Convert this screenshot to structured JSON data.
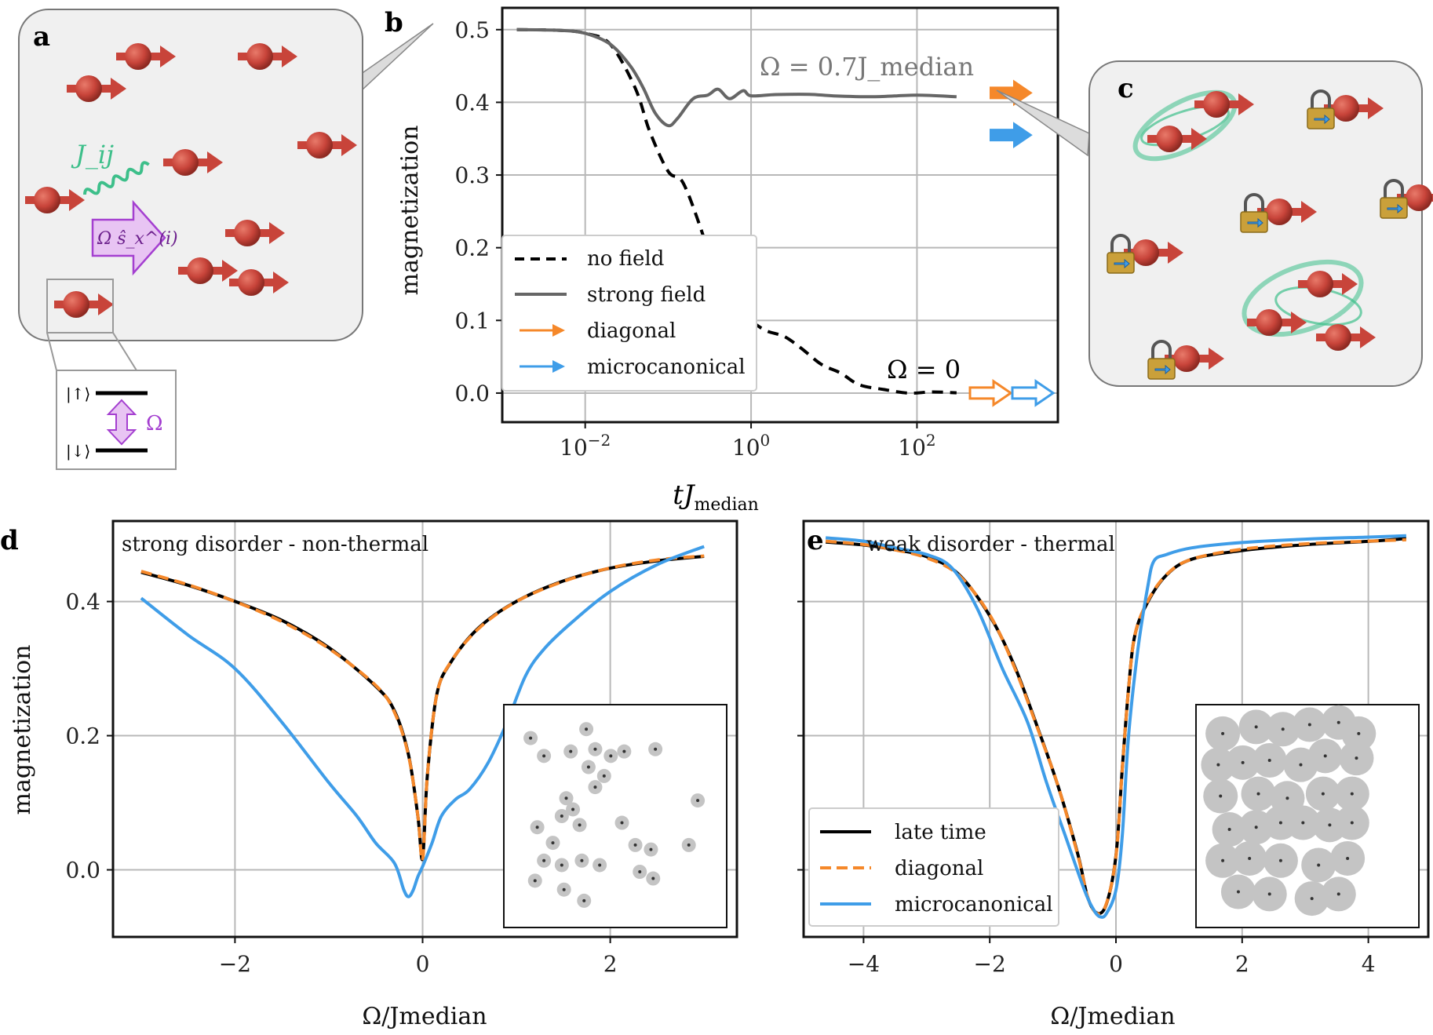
{
  "panels": {
    "a": {
      "letter": "a",
      "coupling_label": "J_ij",
      "field_label": "Ω ŝ_x^(i)",
      "level_up": "|↑⟩",
      "level_down": "|↓⟩",
      "level_field": "Ω"
    },
    "b": {
      "letter": "b",
      "annot_strong": "Ω = 0.7J_median",
      "annot_zero": "Ω = 0",
      "legend": [
        "no field",
        "strong field",
        "diagonal",
        "microcanonical"
      ]
    },
    "c": {
      "letter": "c"
    },
    "d": {
      "letter": "d",
      "title": "strong disorder - non-thermal"
    },
    "e": {
      "letter": "e",
      "title": "weak disorder - thermal",
      "legend": [
        "late time",
        "diagonal",
        "microcanonical"
      ]
    }
  },
  "colors": {
    "spin": "#c8443a",
    "coupling": "#3dbf8a",
    "field": "#a43fd0",
    "field_fill": "#e8c4f3",
    "orange": "#f5882a",
    "blue": "#3f9de8",
    "strong": "#666666",
    "black": "#000000",
    "lock": "#caa03a"
  },
  "icons": [
    "spin-arrow-icon",
    "padlock-icon",
    "wavy-coupling-icon",
    "double-arrow-icon"
  ],
  "chart_data": [
    {
      "panel": "b",
      "type": "line",
      "xscale": "log",
      "xlabel": "tJ_median",
      "ylabel": "magnetization",
      "xlim": [
        0.001,
        5000
      ],
      "ylim": [
        -0.04,
        0.53
      ],
      "xticks": [
        0.01,
        1,
        100
      ],
      "xtick_labels": [
        "10^−2",
        "10^0",
        "10^2"
      ],
      "yticks": [
        0.0,
        0.1,
        0.2,
        0.3,
        0.4,
        0.5
      ],
      "ytick_labels": [
        "0.0",
        "0.1",
        "0.2",
        "0.3",
        "0.4",
        "0.5"
      ],
      "grid": true,
      "legend_position": "lower-left",
      "series": [
        {
          "name": "no field",
          "style": "dashed",
          "x": [
            0.0015,
            0.005,
            0.01,
            0.02,
            0.04,
            0.06,
            0.1,
            0.15,
            0.25,
            0.4,
            0.7,
            1.0,
            1.5,
            2.5,
            4,
            7,
            12,
            20,
            40,
            80,
            150,
            300
          ],
          "y": [
            0.5,
            0.499,
            0.495,
            0.48,
            0.42,
            0.36,
            0.305,
            0.29,
            0.225,
            0.15,
            0.12,
            0.1,
            0.088,
            0.075,
            0.06,
            0.04,
            0.025,
            0.012,
            0.004,
            0.001,
            0.0,
            0.0
          ]
        },
        {
          "name": "strong field",
          "style": "solid",
          "x": [
            0.0015,
            0.005,
            0.01,
            0.02,
            0.035,
            0.05,
            0.07,
            0.1,
            0.13,
            0.2,
            0.3,
            0.4,
            0.55,
            0.8,
            1.0,
            2,
            5,
            10,
            30,
            100,
            300
          ],
          "y": [
            0.5,
            0.499,
            0.495,
            0.48,
            0.45,
            0.42,
            0.385,
            0.368,
            0.378,
            0.405,
            0.41,
            0.418,
            0.405,
            0.416,
            0.409,
            0.412,
            0.411,
            0.411,
            0.41,
            0.411,
            0.41
          ]
        }
      ],
      "arrows": [
        {
          "name": "diagonal",
          "omega": "strong",
          "y": 0.413
        },
        {
          "name": "microcanonical",
          "omega": "strong",
          "y": 0.355
        },
        {
          "name": "diagonal",
          "omega": "zero",
          "y": 0.0
        },
        {
          "name": "microcanonical",
          "omega": "zero",
          "y": 0.0
        }
      ]
    },
    {
      "panel": "d",
      "type": "line",
      "xlabel": "Ω/Jmedian",
      "ylabel": "magnetization",
      "xlim": [
        -3.3,
        3.35
      ],
      "ylim": [
        -0.1,
        0.52
      ],
      "xticks": [
        -2,
        0,
        2
      ],
      "yticks": [
        0.0,
        0.2,
        0.4
      ],
      "ytick_labels": [
        "0.0",
        "0.2",
        "0.4"
      ],
      "grid": true,
      "series": [
        {
          "name": "late time",
          "x": [
            -3,
            -2.5,
            -2,
            -1.5,
            -1,
            -0.5,
            -0.3,
            -0.15,
            -0.05,
            0,
            0.05,
            0.15,
            0.3,
            0.6,
            1,
            1.5,
            2,
            2.5,
            3
          ],
          "y": [
            0.445,
            0.425,
            0.4,
            0.37,
            0.33,
            0.275,
            0.235,
            0.17,
            0.08,
            0.015,
            0.14,
            0.26,
            0.31,
            0.36,
            0.4,
            0.43,
            0.45,
            0.462,
            0.468
          ]
        },
        {
          "name": "diagonal",
          "x": [
            -3,
            -2.5,
            -2,
            -1.5,
            -1,
            -0.5,
            -0.3,
            -0.15,
            -0.05,
            0,
            0.05,
            0.15,
            0.3,
            0.6,
            1,
            1.5,
            2,
            2.5,
            3
          ],
          "y": [
            0.445,
            0.425,
            0.4,
            0.37,
            0.33,
            0.275,
            0.235,
            0.17,
            0.08,
            0.015,
            0.14,
            0.26,
            0.31,
            0.36,
            0.4,
            0.43,
            0.45,
            0.462,
            0.468
          ]
        },
        {
          "name": "microcanonical",
          "x": [
            -3,
            -2.5,
            -2,
            -1.5,
            -1,
            -0.7,
            -0.5,
            -0.3,
            -0.2,
            -0.15,
            -0.1,
            -0.05,
            0,
            0.1,
            0.2,
            0.35,
            0.5,
            0.7,
            0.9,
            1.1,
            1.3,
            1.6,
            2,
            2.5,
            3
          ],
          "y": [
            0.405,
            0.35,
            0.3,
            0.22,
            0.13,
            0.08,
            0.04,
            0.01,
            -0.03,
            -0.04,
            -0.03,
            -0.01,
            0.005,
            0.04,
            0.08,
            0.105,
            0.12,
            0.16,
            0.22,
            0.29,
            0.33,
            0.37,
            0.415,
            0.455,
            0.482
          ]
        }
      ],
      "inset_points": [
        [
          0.12,
          0.85
        ],
        [
          0.37,
          0.89
        ],
        [
          0.18,
          0.77
        ],
        [
          0.3,
          0.79
        ],
        [
          0.41,
          0.8
        ],
        [
          0.38,
          0.72
        ],
        [
          0.48,
          0.77
        ],
        [
          0.54,
          0.79
        ],
        [
          0.68,
          0.8
        ],
        [
          0.45,
          0.68
        ],
        [
          0.28,
          0.58
        ],
        [
          0.41,
          0.63
        ],
        [
          0.26,
          0.5
        ],
        [
          0.31,
          0.53
        ],
        [
          0.15,
          0.45
        ],
        [
          0.34,
          0.46
        ],
        [
          0.53,
          0.47
        ],
        [
          0.59,
          0.37
        ],
        [
          0.22,
          0.38
        ],
        [
          0.66,
          0.35
        ],
        [
          0.83,
          0.37
        ],
        [
          0.87,
          0.57
        ],
        [
          0.18,
          0.3
        ],
        [
          0.26,
          0.28
        ],
        [
          0.35,
          0.3
        ],
        [
          0.43,
          0.28
        ],
        [
          0.61,
          0.25
        ],
        [
          0.67,
          0.22
        ],
        [
          0.14,
          0.21
        ],
        [
          0.27,
          0.17
        ],
        [
          0.36,
          0.12
        ]
      ]
    },
    {
      "panel": "e",
      "type": "line",
      "xlabel": "Ω/Jmedian",
      "ylabel": "",
      "xlim": [
        -4.95,
        4.95
      ],
      "ylim": [
        -0.1,
        0.52
      ],
      "xticks": [
        -4,
        -2,
        0,
        2,
        4
      ],
      "yticks": [
        0.0,
        0.2,
        0.4
      ],
      "grid": true,
      "legend_position": "lower-left",
      "series": [
        {
          "name": "late time",
          "x": [
            -4.6,
            -4,
            -3.5,
            -3,
            -2.5,
            -2,
            -1.6,
            -1.2,
            -0.9,
            -0.6,
            -0.45,
            -0.3,
            -0.15,
            0,
            0.1,
            0.2,
            0.3,
            0.5,
            0.8,
            1.2,
            2,
            3,
            4,
            4.6
          ],
          "y": [
            0.49,
            0.485,
            0.477,
            0.465,
            0.44,
            0.38,
            0.3,
            0.2,
            0.12,
            0.02,
            -0.04,
            -0.065,
            -0.05,
            0.02,
            0.15,
            0.27,
            0.35,
            0.4,
            0.44,
            0.463,
            0.478,
            0.486,
            0.49,
            0.492
          ]
        },
        {
          "name": "diagonal",
          "x": [
            -4.6,
            -4,
            -3.5,
            -3,
            -2.5,
            -2,
            -1.6,
            -1.2,
            -0.9,
            -0.6,
            -0.45,
            -0.3,
            -0.15,
            0,
            0.1,
            0.2,
            0.3,
            0.5,
            0.8,
            1.2,
            2,
            3,
            4,
            4.6
          ],
          "y": [
            0.49,
            0.485,
            0.477,
            0.465,
            0.44,
            0.38,
            0.3,
            0.2,
            0.12,
            0.02,
            -0.04,
            -0.065,
            -0.05,
            0.02,
            0.15,
            0.27,
            0.35,
            0.4,
            0.44,
            0.463,
            0.478,
            0.486,
            0.49,
            0.492
          ]
        },
        {
          "name": "microcanonical",
          "x": [
            -4.6,
            -4,
            -3.5,
            -3,
            -2.6,
            -2.2,
            -1.8,
            -1.4,
            -1.1,
            -0.8,
            -0.5,
            -0.35,
            -0.25,
            -0.15,
            0,
            0.1,
            0.2,
            0.35,
            0.5,
            0.6,
            0.8,
            1.2,
            2,
            3,
            4,
            4.6
          ],
          "y": [
            0.495,
            0.49,
            0.48,
            0.47,
            0.45,
            0.39,
            0.3,
            0.22,
            0.13,
            0.05,
            -0.03,
            -0.06,
            -0.07,
            -0.065,
            -0.03,
            0.05,
            0.2,
            0.33,
            0.42,
            0.46,
            0.47,
            0.48,
            0.488,
            0.493,
            0.496,
            0.498
          ]
        }
      ],
      "inset_points": [
        [
          0.12,
          0.87
        ],
        [
          0.27,
          0.9
        ],
        [
          0.39,
          0.89
        ],
        [
          0.51,
          0.91
        ],
        [
          0.64,
          0.92
        ],
        [
          0.73,
          0.87
        ],
        [
          0.1,
          0.73
        ],
        [
          0.21,
          0.74
        ],
        [
          0.33,
          0.75
        ],
        [
          0.47,
          0.73
        ],
        [
          0.58,
          0.77
        ],
        [
          0.72,
          0.76
        ],
        [
          0.11,
          0.59
        ],
        [
          0.28,
          0.6
        ],
        [
          0.41,
          0.58
        ],
        [
          0.57,
          0.6
        ],
        [
          0.7,
          0.6
        ],
        [
          0.15,
          0.44
        ],
        [
          0.27,
          0.45
        ],
        [
          0.38,
          0.47
        ],
        [
          0.48,
          0.47
        ],
        [
          0.6,
          0.46
        ],
        [
          0.7,
          0.47
        ],
        [
          0.12,
          0.3
        ],
        [
          0.24,
          0.31
        ],
        [
          0.38,
          0.3
        ],
        [
          0.55,
          0.28
        ],
        [
          0.68,
          0.31
        ],
        [
          0.19,
          0.16
        ],
        [
          0.33,
          0.15
        ],
        [
          0.52,
          0.13
        ],
        [
          0.64,
          0.15
        ]
      ]
    }
  ]
}
